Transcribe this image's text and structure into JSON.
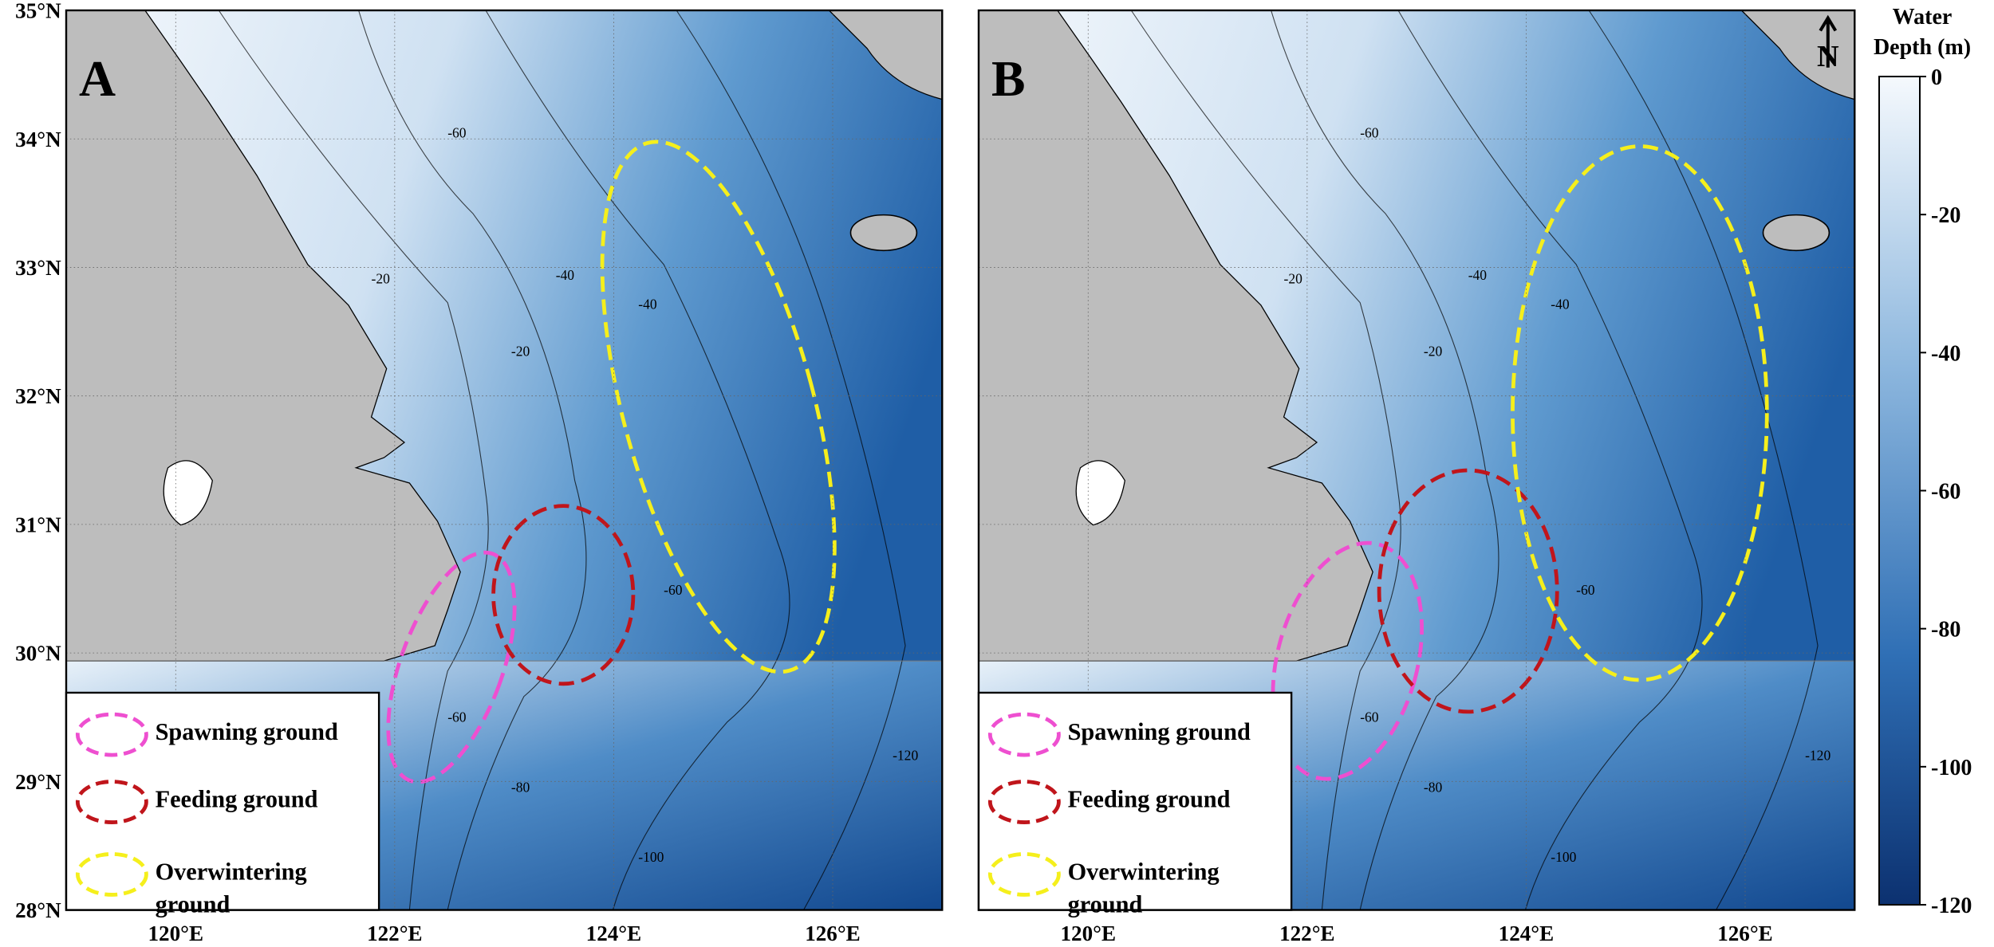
{
  "panels": [
    {
      "label": "A",
      "legend": [
        "Spawning ground",
        "Feeding ground",
        "Overwintering ground"
      ],
      "contour_labels": [
        -20,
        -20,
        -40,
        -40,
        -60,
        -60,
        -60,
        -80,
        -100,
        -120
      ]
    },
    {
      "label": "B",
      "north": "N",
      "legend": [
        "Spawning ground",
        "Feeding ground",
        "Overwintering ground"
      ],
      "contour_labels": [
        -20,
        -20,
        -40,
        -40,
        -60,
        -60,
        -60,
        -80,
        -100,
        -120
      ]
    }
  ],
  "axes": {
    "lat_ticks": [
      {
        "value": 28,
        "label": "28°N"
      },
      {
        "value": 29,
        "label": "29°N"
      },
      {
        "value": 30,
        "label": "30°N"
      },
      {
        "value": 31,
        "label": "31°N"
      },
      {
        "value": 32,
        "label": "32°N"
      },
      {
        "value": 33,
        "label": "33°N"
      },
      {
        "value": 34,
        "label": "34°N"
      },
      {
        "value": 35,
        "label": "35°N"
      }
    ],
    "lon_ticks": [
      {
        "value": 120,
        "label": "120°E"
      },
      {
        "value": 122,
        "label": "122°E"
      },
      {
        "value": 124,
        "label": "124°E"
      },
      {
        "value": 126,
        "label": "126°E"
      }
    ],
    "xlim": [
      119,
      127
    ],
    "ylim": [
      28,
      35
    ]
  },
  "colorbar": {
    "title_lines": [
      "Water",
      "Depth (m)"
    ],
    "range": [
      0,
      -120
    ],
    "ticks": [
      0,
      -20,
      -40,
      -60,
      -80,
      -100,
      -120
    ]
  }
}
